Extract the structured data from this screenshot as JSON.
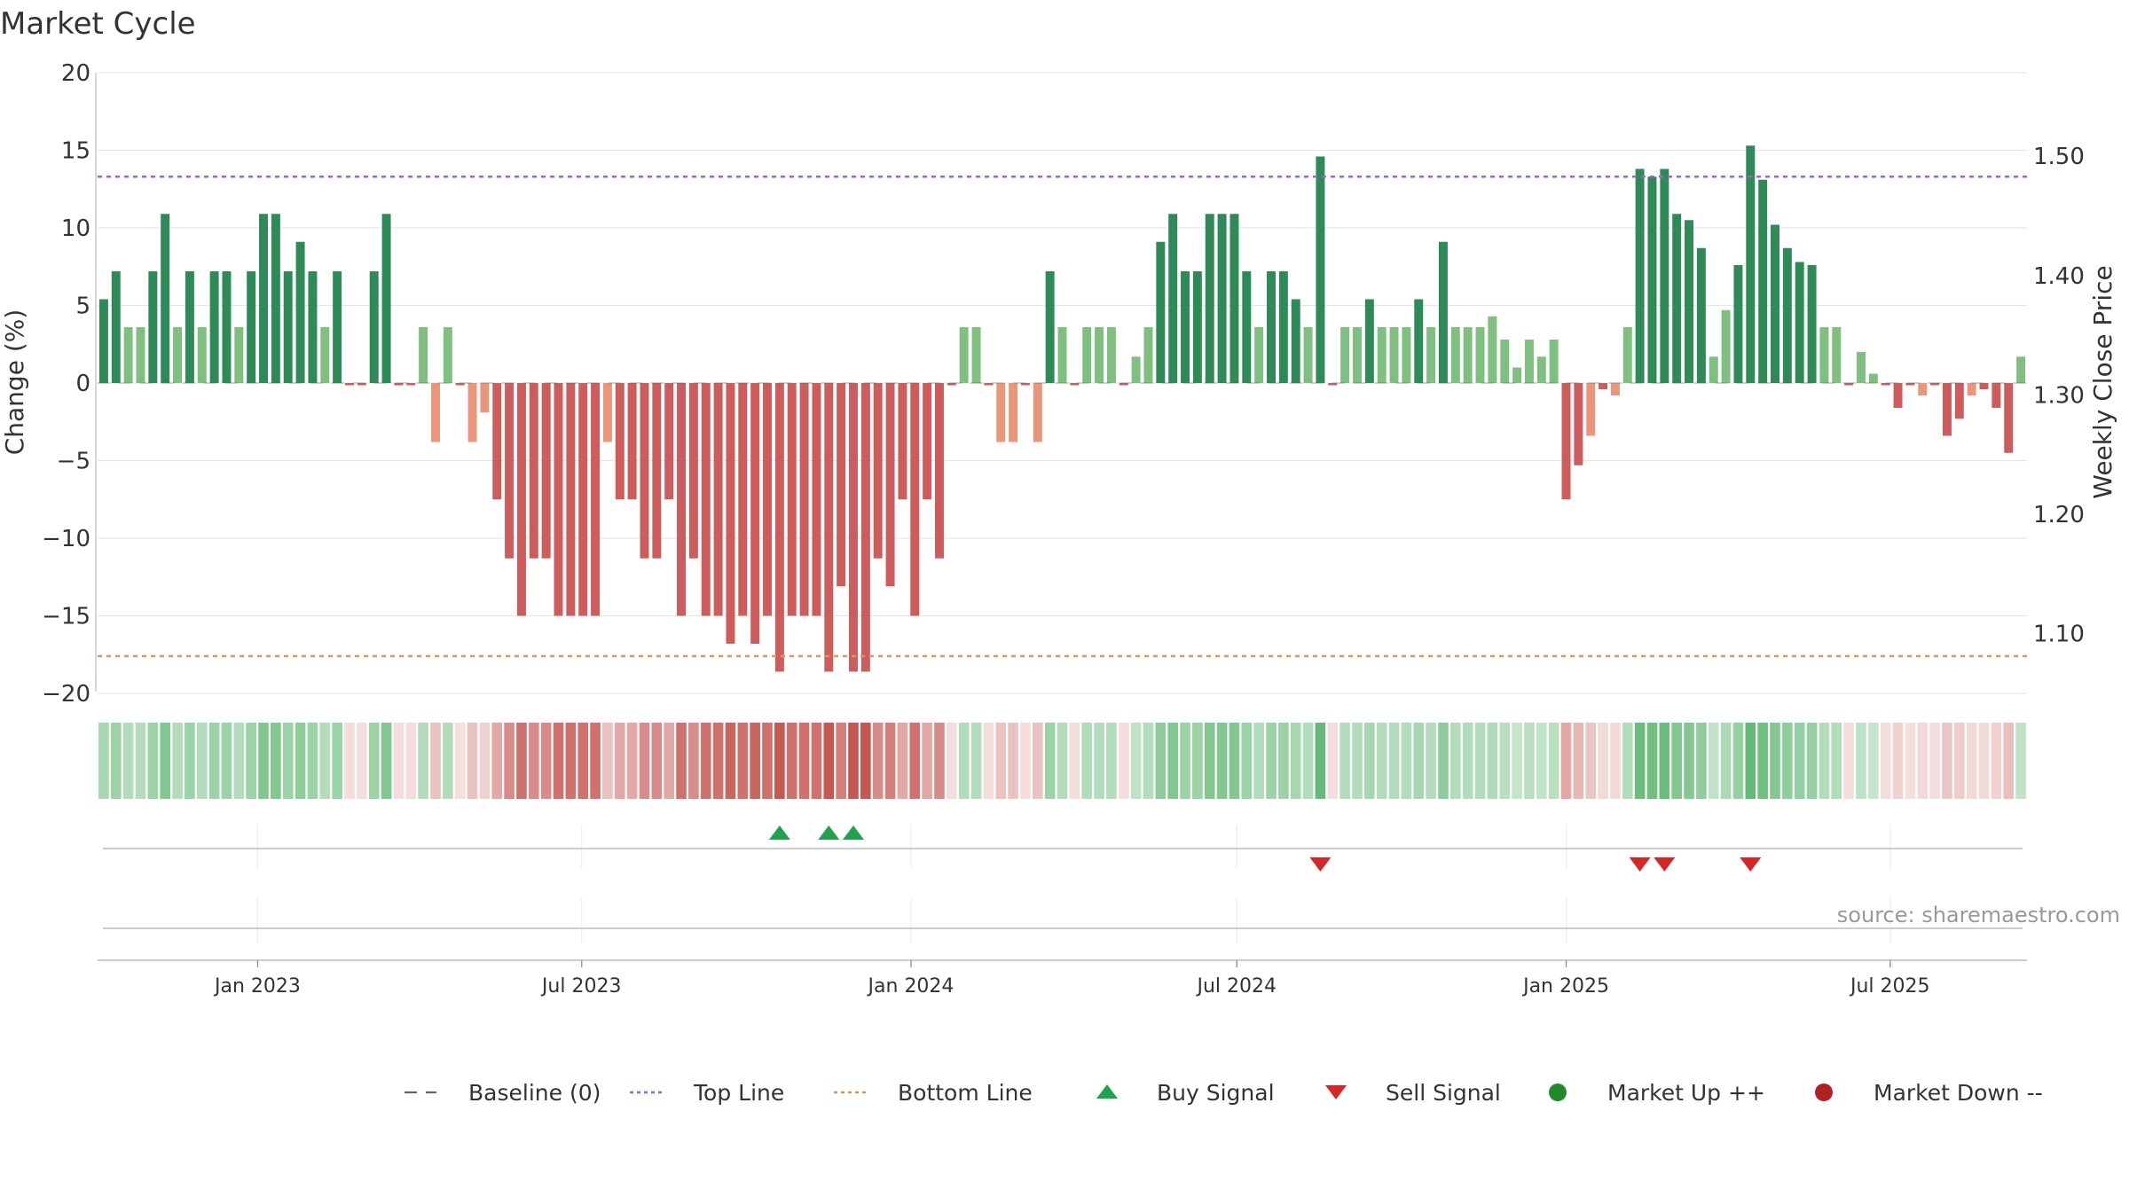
{
  "chart_data": {
    "type": "bar",
    "title": "Market Cycle",
    "ylabel": "Change (%)",
    "y2label": "Weekly Close Price",
    "ylim": [
      -20,
      20
    ],
    "yticks": [
      20,
      15,
      10,
      5,
      0,
      -5,
      -10,
      -15,
      -20
    ],
    "y2ticks": [
      {
        "value": 1.5,
        "label": "1.50"
      },
      {
        "value": 1.4,
        "label": "1.40"
      },
      {
        "value": 1.3,
        "label": "1.30"
      },
      {
        "value": 1.2,
        "label": "1.20"
      },
      {
        "value": 1.1,
        "label": "1.10"
      }
    ],
    "y2lim": [
      1.05,
      1.57
    ],
    "top_line": 13.3,
    "bottom_line": -17.6,
    "date_start": "2022-10-07",
    "date_end": "2025-09-12",
    "xticks": [
      {
        "date": "2023-01-01",
        "label": "Jan 2023"
      },
      {
        "date": "2023-07-01",
        "label": "Jul 2023"
      },
      {
        "date": "2024-01-01",
        "label": "Jan 2024"
      },
      {
        "date": "2024-07-01",
        "label": "Jul 2024"
      },
      {
        "date": "2025-01-01",
        "label": "Jan 2025"
      },
      {
        "date": "2025-07-01",
        "label": "Jul 2025"
      }
    ],
    "values": [
      5.4,
      7.2,
      3.6,
      3.6,
      7.2,
      10.9,
      3.6,
      7.2,
      3.6,
      7.2,
      7.2,
      3.6,
      7.2,
      10.9,
      10.9,
      7.2,
      9.1,
      7.2,
      3.6,
      7.2,
      -0.1,
      -0.1,
      7.2,
      10.9,
      -0.1,
      -0.1,
      3.6,
      -3.8,
      3.6,
      -0.1,
      -3.8,
      -1.9,
      -7.5,
      -11.3,
      -15.0,
      -11.3,
      -11.3,
      -15.0,
      -15.0,
      -15.0,
      -15.0,
      -3.8,
      -7.5,
      -7.5,
      -11.3,
      -11.3,
      -7.5,
      -15.0,
      -11.3,
      -15.0,
      -15.0,
      -16.8,
      -15.0,
      -16.8,
      -15.0,
      -18.6,
      -15.0,
      -15.0,
      -15.0,
      -18.6,
      -13.1,
      -18.6,
      -18.6,
      -11.3,
      -13.1,
      -7.5,
      -15.0,
      -7.5,
      -11.3,
      -0.1,
      3.6,
      3.6,
      -0.1,
      -3.8,
      -3.8,
      -0.1,
      -3.8,
      7.2,
      3.6,
      -0.1,
      3.6,
      3.6,
      3.6,
      -0.1,
      1.7,
      3.6,
      9.1,
      10.9,
      7.2,
      7.2,
      10.9,
      10.9,
      10.9,
      7.2,
      3.6,
      7.2,
      7.2,
      5.4,
      3.6,
      14.6,
      -0.1,
      3.6,
      3.6,
      5.4,
      3.6,
      3.6,
      3.6,
      5.4,
      3.6,
      9.1,
      3.6,
      3.6,
      3.6,
      4.3,
      2.8,
      1.0,
      2.8,
      1.7,
      2.8,
      -7.5,
      -5.3,
      -3.4,
      -0.4,
      -0.8,
      3.6,
      13.8,
      13.3,
      13.8,
      10.9,
      10.5,
      8.7,
      1.7,
      4.7,
      7.6,
      15.3,
      13.1,
      10.2,
      8.7,
      7.8,
      7.6,
      3.6,
      3.6,
      -0.1,
      2.0,
      0.6,
      -0.1,
      -1.6,
      -0.1,
      -0.8,
      -0.1,
      -3.4,
      -2.3,
      -0.8,
      -0.4,
      -1.6,
      -4.5,
      1.7
    ],
    "buy_signals": [
      55,
      59,
      61
    ],
    "sell_signals": [
      99,
      125,
      127,
      134
    ],
    "source_label": "source: sharemaestro.com",
    "legend": [
      {
        "key": "baseline",
        "label": "Baseline (0)",
        "color": "#666666"
      },
      {
        "key": "top",
        "label": "Top Line",
        "color": "#9966cc"
      },
      {
        "key": "bottom",
        "label": "Bottom Line",
        "color": "#e8925a"
      },
      {
        "key": "buy",
        "label": "Buy Signal",
        "color": "#22a04b"
      },
      {
        "key": "sell",
        "label": "Sell Signal",
        "color": "#d62728"
      },
      {
        "key": "up",
        "label": "Market Up ++",
        "color": "#1e8c2e"
      },
      {
        "key": "down",
        "label": "Market Down --",
        "color": "#b22222"
      }
    ],
    "colors": {
      "up_strong": "#2e8b57",
      "up_light": "#7fbf7f",
      "down_strong": "#cd5c5c",
      "down_light": "#e9967a",
      "top_line": "#9966cc",
      "bottom_line": "#e8925a",
      "buy": "#22a04b",
      "sell": "#d62728"
    }
  }
}
